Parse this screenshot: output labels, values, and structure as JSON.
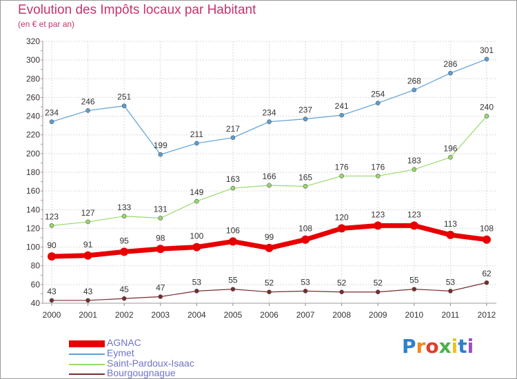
{
  "title": "Evolution des Impôts locaux par Habitant",
  "subtitle": "(en € et par an)",
  "logo": {
    "letters": [
      "P",
      "r",
      "o",
      "x",
      "i",
      "t",
      "i"
    ],
    "colors": [
      "#2f7fd0",
      "#f08a1c",
      "#e23d2d",
      "#4ab04a",
      "#f0c020",
      "#2f7fd0",
      "#9b4fc0"
    ]
  },
  "chart_data": {
    "type": "line",
    "title": "Evolution des Impôts locaux par Habitant",
    "subtitle": "(en € et par an)",
    "x": [
      "2000",
      "2001",
      "2002",
      "2003",
      "2004",
      "2005",
      "2006",
      "2007",
      "2008",
      "2009",
      "2010",
      "2011",
      "2012"
    ],
    "ylim": [
      40,
      320
    ],
    "yticks": [
      40,
      60,
      80,
      100,
      120,
      140,
      160,
      180,
      200,
      220,
      240,
      260,
      280,
      300,
      320
    ],
    "grid": true,
    "legend_position": "bottom-left",
    "series": [
      {
        "name": "AGNAC",
        "color": "#e80000",
        "values": [
          90,
          91,
          95,
          98,
          100,
          106,
          99,
          108,
          120,
          123,
          123,
          113,
          108
        ]
      },
      {
        "name": "Eymet",
        "color": "#5b9fd6",
        "values": [
          234,
          246,
          251,
          199,
          211,
          217,
          234,
          237,
          241,
          254,
          268,
          286,
          301
        ]
      },
      {
        "name": "Saint-Pardoux-Isaac",
        "color": "#98da6a",
        "values": [
          123,
          127,
          133,
          131,
          149,
          163,
          166,
          165,
          176,
          176,
          183,
          196,
          240
        ]
      },
      {
        "name": "Bourgougnague",
        "color": "#7a2a2e",
        "values": [
          43,
          43,
          45,
          47,
          53,
          55,
          52,
          53,
          52,
          52,
          55,
          53,
          62
        ]
      }
    ]
  }
}
